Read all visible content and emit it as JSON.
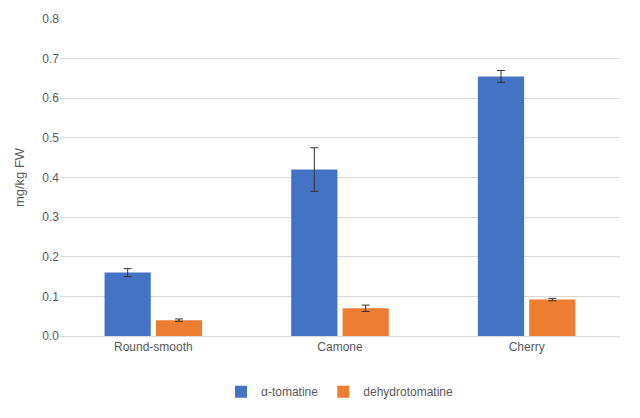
{
  "chart_data": {
    "type": "bar",
    "y_label": "mg/kg FW",
    "categories": [
      "Round-smooth",
      "Camone",
      "Cherry"
    ],
    "series": [
      {
        "name": "α-tomatine",
        "color": "#4472c4",
        "values": [
          0.16,
          0.42,
          0.655
        ],
        "errors": [
          0.01,
          0.055,
          0.015
        ]
      },
      {
        "name": "dehydrotomatine",
        "color": "#ed7d31",
        "values": [
          0.04,
          0.07,
          0.092
        ],
        "errors": [
          0.003,
          0.008,
          0.003
        ]
      }
    ],
    "ylim": [
      0,
      0.8
    ],
    "yticks": [
      {
        "value": 0,
        "label": "0.0"
      },
      {
        "value": 0.1,
        "label": "0.1"
      },
      {
        "value": 0.2,
        "label": "0.2"
      },
      {
        "value": 0.3,
        "label": "0.3"
      },
      {
        "value": 0.4,
        "label": "0.4"
      },
      {
        "value": 0.5,
        "label": "0.5"
      },
      {
        "value": 0.6,
        "label": "0.6"
      },
      {
        "value": 0.7,
        "label": "0.7"
      },
      {
        "value": 0.8,
        "label": "0.8"
      }
    ],
    "grid": true,
    "legend": "bottom"
  }
}
